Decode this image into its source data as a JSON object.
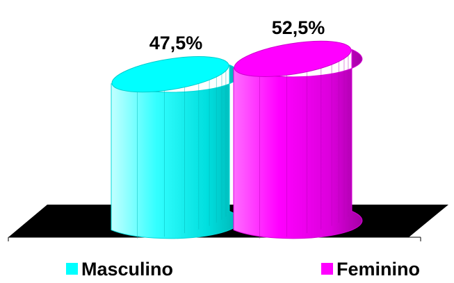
{
  "chart_data": {
    "type": "bar",
    "style": "3d-cylinder",
    "categories": [
      "Masculino",
      "Feminino"
    ],
    "values": [
      47.5,
      52.5
    ],
    "data_labels": [
      "47,5%",
      "52,5%"
    ],
    "colors": [
      "#00FFFF",
      "#FF00FF"
    ],
    "ylim": [
      0,
      60
    ],
    "grid": false,
    "legend_position": "bottom"
  }
}
